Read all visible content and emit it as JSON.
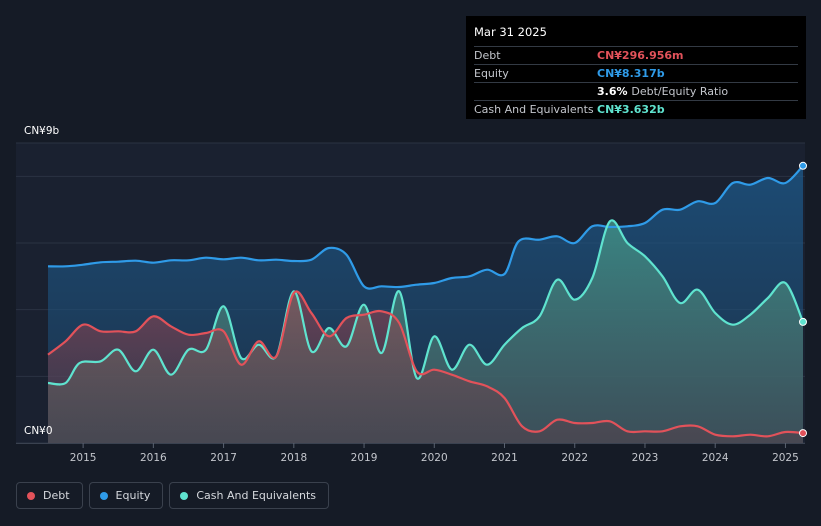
{
  "tooltip": {
    "date": "Mar 31 2025",
    "rows": [
      {
        "label": "Debt",
        "value": "CN¥296.956m",
        "color": "#e2525a"
      },
      {
        "label": "Equity",
        "value": "CN¥8.317b",
        "color": "#2f9be8"
      },
      {
        "label": "",
        "value": "3.6%",
        "sub": "Debt/Equity Ratio",
        "color": "#ffffff"
      },
      {
        "label": "Cash And Equivalents",
        "value": "CN¥3.632b",
        "color": "#5fe3cf"
      }
    ]
  },
  "legend": [
    {
      "label": "Debt",
      "color": "#e2525a"
    },
    {
      "label": "Equity",
      "color": "#2f9be8"
    },
    {
      "label": "Cash And Equivalents",
      "color": "#5fe3cf"
    }
  ],
  "chart_data": {
    "type": "area",
    "y_top_label": "CN¥9b",
    "y_bottom_label": "CN¥0",
    "ylim": [
      0,
      9
    ],
    "xlim": [
      2014.5,
      2025.25
    ],
    "x_ticks": [
      "2015",
      "2016",
      "2017",
      "2018",
      "2019",
      "2020",
      "2021",
      "2022",
      "2023",
      "2024",
      "2025"
    ],
    "series": [
      {
        "name": "Equity",
        "color": "#2f9be8",
        "points": [
          [
            2014.5,
            5.3
          ],
          [
            2014.75,
            5.3
          ],
          [
            2015.0,
            5.35
          ],
          [
            2015.25,
            5.42
          ],
          [
            2015.5,
            5.44
          ],
          [
            2015.75,
            5.47
          ],
          [
            2016.0,
            5.41
          ],
          [
            2016.25,
            5.48
          ],
          [
            2016.5,
            5.48
          ],
          [
            2016.75,
            5.56
          ],
          [
            2017.0,
            5.51
          ],
          [
            2017.25,
            5.56
          ],
          [
            2017.5,
            5.48
          ],
          [
            2017.75,
            5.5
          ],
          [
            2018.0,
            5.46
          ],
          [
            2018.25,
            5.5
          ],
          [
            2018.5,
            5.85
          ],
          [
            2018.75,
            5.65
          ],
          [
            2019.0,
            4.7
          ],
          [
            2019.25,
            4.7
          ],
          [
            2019.5,
            4.68
          ],
          [
            2019.75,
            4.75
          ],
          [
            2020.0,
            4.8
          ],
          [
            2020.25,
            4.95
          ],
          [
            2020.5,
            5.0
          ],
          [
            2020.75,
            5.2
          ],
          [
            2021.0,
            5.07
          ],
          [
            2021.2,
            6.05
          ],
          [
            2021.5,
            6.1
          ],
          [
            2021.75,
            6.2
          ],
          [
            2022.0,
            6.0
          ],
          [
            2022.25,
            6.5
          ],
          [
            2022.5,
            6.48
          ],
          [
            2022.75,
            6.5
          ],
          [
            2023.0,
            6.6
          ],
          [
            2023.25,
            7.0
          ],
          [
            2023.5,
            7.0
          ],
          [
            2023.75,
            7.25
          ],
          [
            2024.0,
            7.2
          ],
          [
            2024.25,
            7.8
          ],
          [
            2024.5,
            7.75
          ],
          [
            2024.75,
            7.95
          ],
          [
            2025.0,
            7.8
          ],
          [
            2025.25,
            8.317
          ]
        ]
      },
      {
        "name": "Cash And Equivalents",
        "color": "#5fe3cf",
        "points": [
          [
            2014.5,
            1.8
          ],
          [
            2014.75,
            1.8
          ],
          [
            2014.95,
            2.4
          ],
          [
            2015.25,
            2.45
          ],
          [
            2015.5,
            2.8
          ],
          [
            2015.75,
            2.15
          ],
          [
            2016.0,
            2.8
          ],
          [
            2016.25,
            2.05
          ],
          [
            2016.5,
            2.8
          ],
          [
            2016.75,
            2.8
          ],
          [
            2017.0,
            4.1
          ],
          [
            2017.25,
            2.55
          ],
          [
            2017.5,
            2.95
          ],
          [
            2017.75,
            2.6
          ],
          [
            2018.0,
            4.55
          ],
          [
            2018.25,
            2.75
          ],
          [
            2018.5,
            3.45
          ],
          [
            2018.75,
            2.9
          ],
          [
            2019.0,
            4.15
          ],
          [
            2019.25,
            2.7
          ],
          [
            2019.5,
            4.55
          ],
          [
            2019.75,
            1.95
          ],
          [
            2020.0,
            3.2
          ],
          [
            2020.25,
            2.2
          ],
          [
            2020.5,
            2.95
          ],
          [
            2020.75,
            2.35
          ],
          [
            2021.0,
            2.95
          ],
          [
            2021.25,
            3.45
          ],
          [
            2021.5,
            3.8
          ],
          [
            2021.75,
            4.9
          ],
          [
            2022.0,
            4.3
          ],
          [
            2022.25,
            4.95
          ],
          [
            2022.5,
            6.65
          ],
          [
            2022.75,
            6.0
          ],
          [
            2023.0,
            5.6
          ],
          [
            2023.25,
            5.0
          ],
          [
            2023.5,
            4.2
          ],
          [
            2023.75,
            4.6
          ],
          [
            2024.0,
            3.9
          ],
          [
            2024.25,
            3.55
          ],
          [
            2024.5,
            3.85
          ],
          [
            2024.75,
            4.35
          ],
          [
            2025.0,
            4.8
          ],
          [
            2025.25,
            3.632
          ]
        ]
      },
      {
        "name": "Debt",
        "color": "#e2525a",
        "points": [
          [
            2014.5,
            2.65
          ],
          [
            2014.75,
            3.05
          ],
          [
            2015.0,
            3.55
          ],
          [
            2015.25,
            3.35
          ],
          [
            2015.5,
            3.35
          ],
          [
            2015.75,
            3.35
          ],
          [
            2016.0,
            3.8
          ],
          [
            2016.25,
            3.5
          ],
          [
            2016.5,
            3.25
          ],
          [
            2016.75,
            3.3
          ],
          [
            2017.0,
            3.35
          ],
          [
            2017.25,
            2.35
          ],
          [
            2017.5,
            3.05
          ],
          [
            2017.75,
            2.6
          ],
          [
            2018.0,
            4.5
          ],
          [
            2018.25,
            3.9
          ],
          [
            2018.5,
            3.2
          ],
          [
            2018.75,
            3.75
          ],
          [
            2019.0,
            3.85
          ],
          [
            2019.25,
            3.95
          ],
          [
            2019.5,
            3.6
          ],
          [
            2019.75,
            2.15
          ],
          [
            2020.0,
            2.2
          ],
          [
            2020.25,
            2.05
          ],
          [
            2020.5,
            1.85
          ],
          [
            2020.75,
            1.7
          ],
          [
            2021.0,
            1.35
          ],
          [
            2021.25,
            0.5
          ],
          [
            2021.5,
            0.35
          ],
          [
            2021.75,
            0.7
          ],
          [
            2022.0,
            0.6
          ],
          [
            2022.25,
            0.6
          ],
          [
            2022.5,
            0.65
          ],
          [
            2022.75,
            0.35
          ],
          [
            2023.0,
            0.35
          ],
          [
            2023.25,
            0.35
          ],
          [
            2023.5,
            0.5
          ],
          [
            2023.75,
            0.5
          ],
          [
            2024.0,
            0.25
          ],
          [
            2024.25,
            0.2
          ],
          [
            2024.5,
            0.25
          ],
          [
            2024.75,
            0.2
          ],
          [
            2025.0,
            0.33
          ],
          [
            2025.25,
            0.297
          ]
        ]
      }
    ]
  }
}
